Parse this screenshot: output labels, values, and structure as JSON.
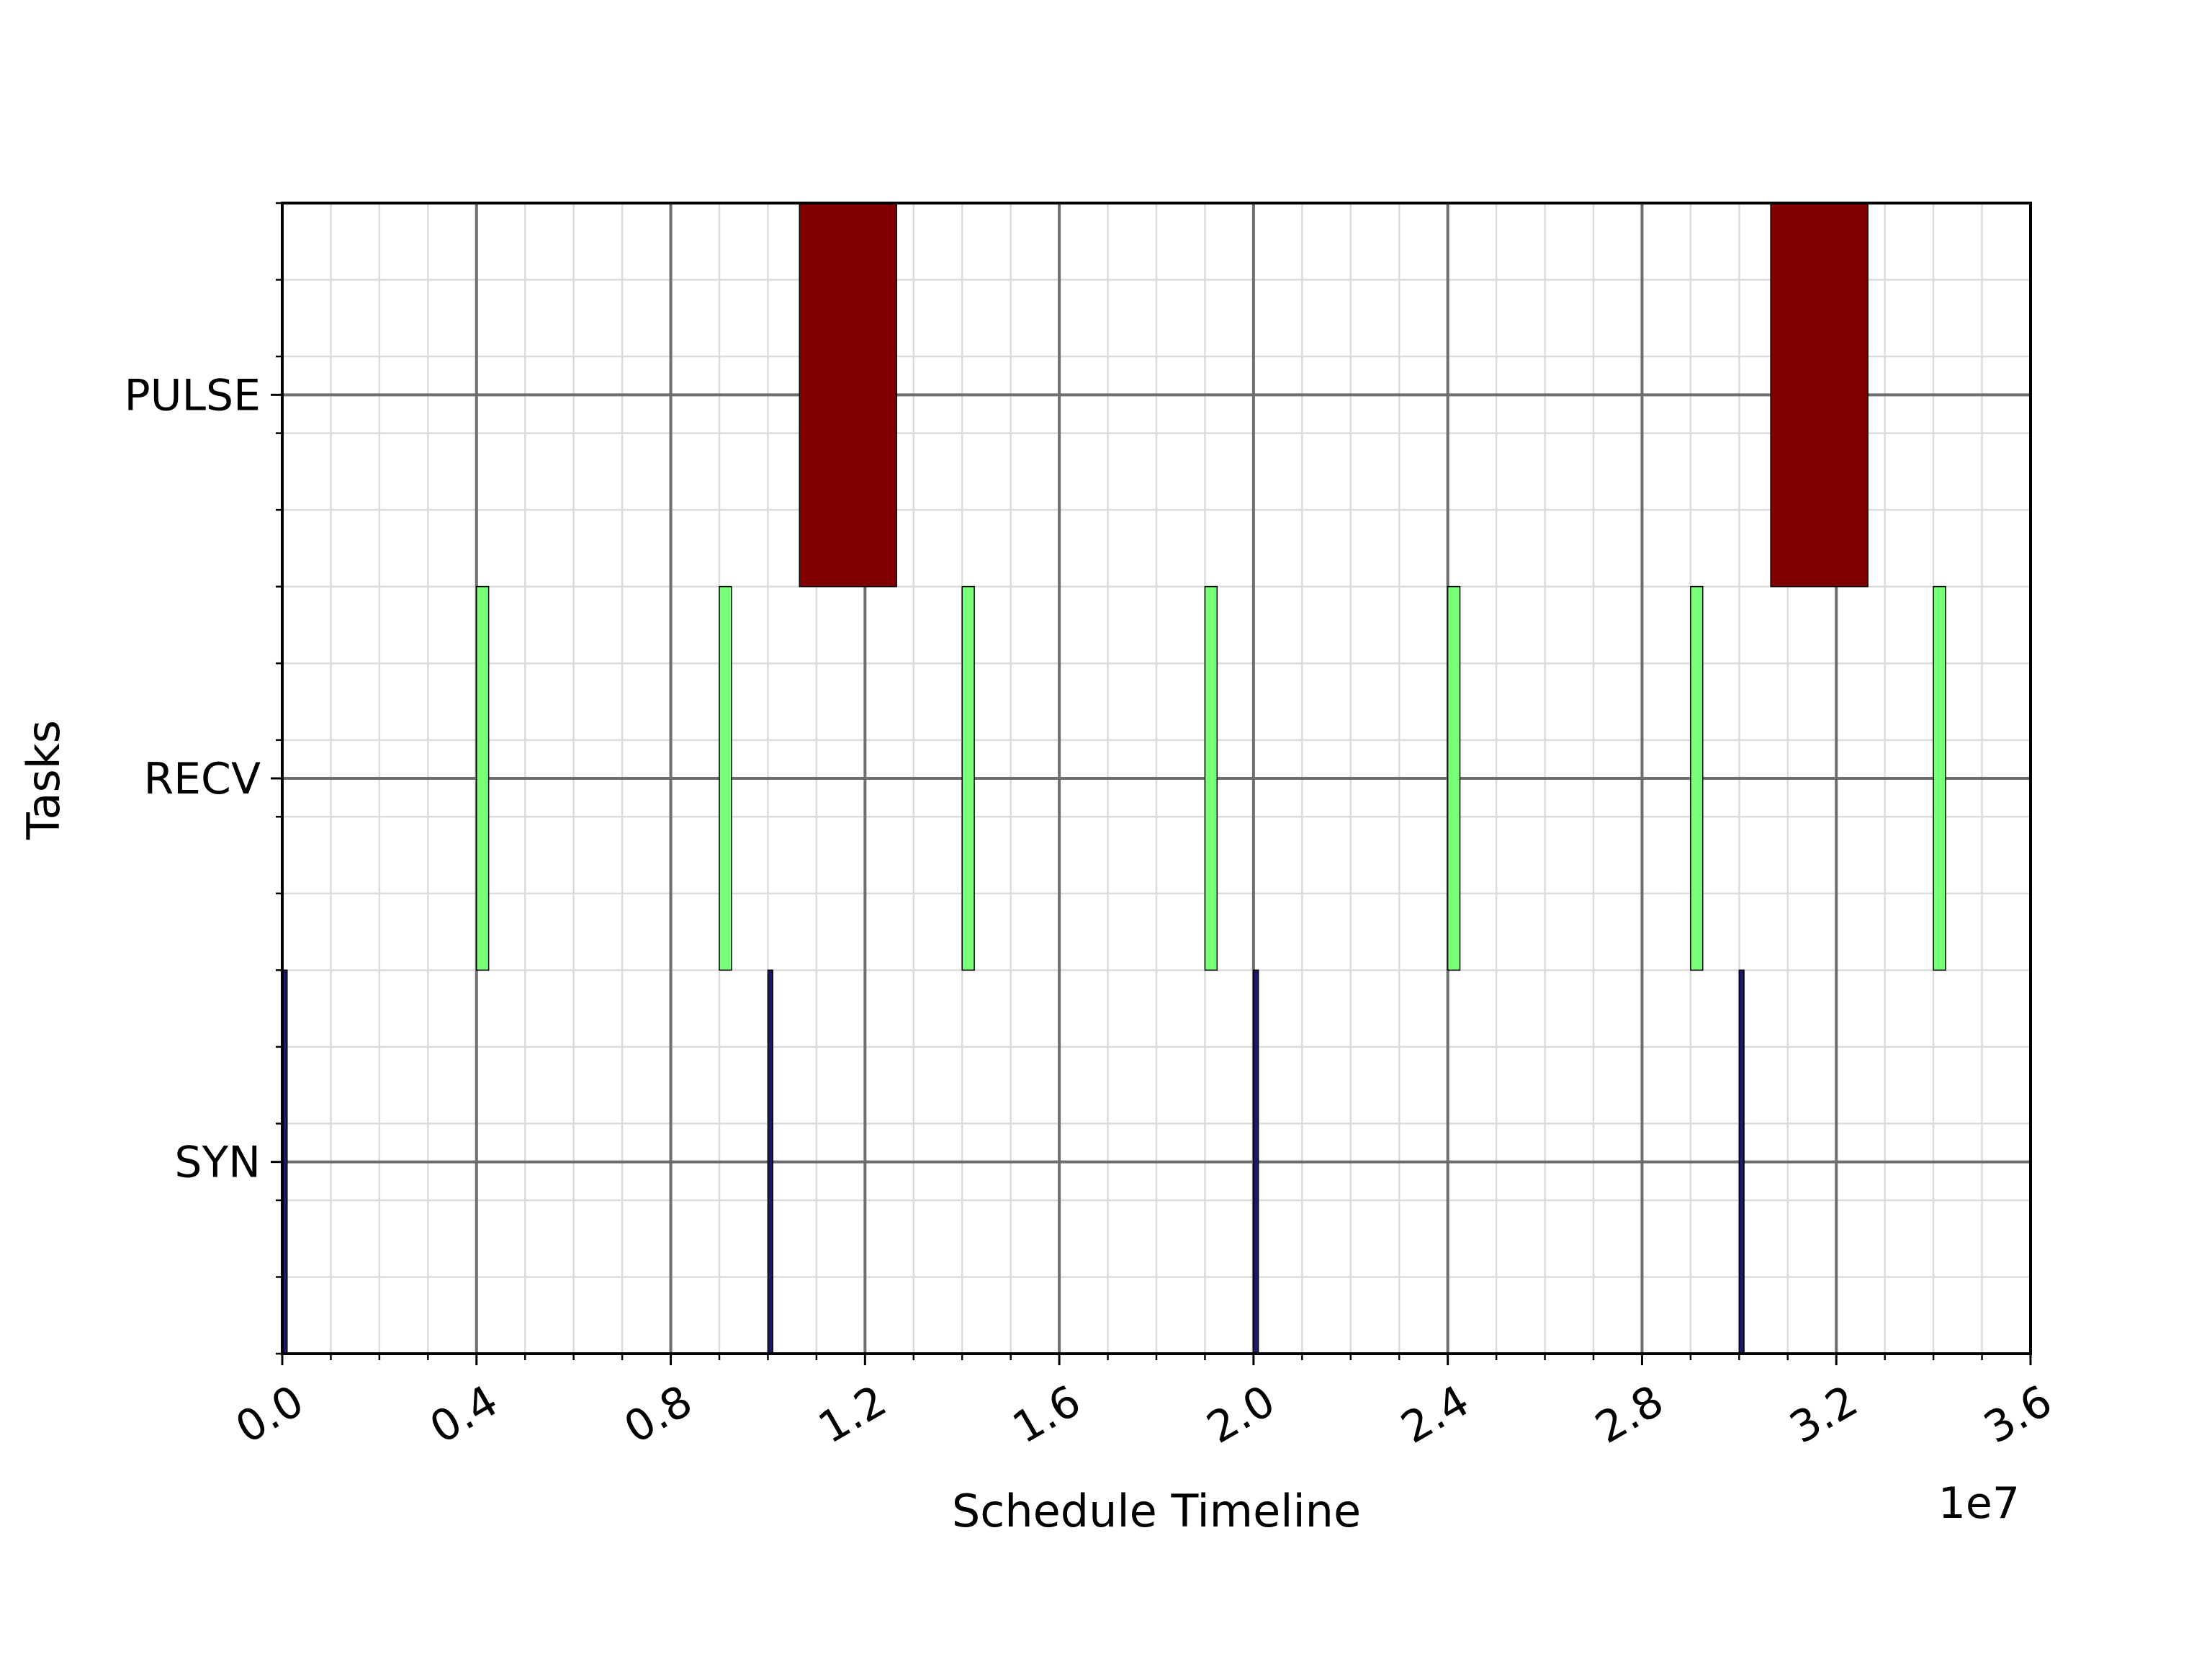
{
  "chart_data": {
    "type": "gantt",
    "title": "",
    "xlabel": "Schedule Timeline",
    "ylabel": "Tasks",
    "x_multiplier_label": "1e7",
    "xlim": [
      0,
      36000000
    ],
    "x_ticks": [
      0,
      4000000,
      8000000,
      12000000,
      16000000,
      20000000,
      24000000,
      28000000,
      32000000,
      36000000
    ],
    "x_tick_labels": [
      "0.0",
      "0.4",
      "0.8",
      "1.2",
      "1.6",
      "2.0",
      "2.4",
      "2.8",
      "3.2",
      "3.6"
    ],
    "x_minor_step": 1000000,
    "ylim": [
      -0.5,
      2.5
    ],
    "y_minor_step": 0.2,
    "categories": [
      "SYN",
      "RECV",
      "PULSE"
    ],
    "grid": true,
    "series": [
      {
        "task": "SYN",
        "color": "#1a1a66",
        "bars": [
          {
            "start": 0,
            "duration": 100000
          },
          {
            "start": 10000000,
            "duration": 100000
          },
          {
            "start": 20000000,
            "duration": 100000
          },
          {
            "start": 30000000,
            "duration": 100000
          }
        ]
      },
      {
        "task": "RECV",
        "color": "#77ff77",
        "bars": [
          {
            "start": 4000000,
            "duration": 250000
          },
          {
            "start": 9000000,
            "duration": 250000
          },
          {
            "start": 14000000,
            "duration": 250000
          },
          {
            "start": 19000000,
            "duration": 250000
          },
          {
            "start": 24000000,
            "duration": 250000
          },
          {
            "start": 29000000,
            "duration": 250000
          },
          {
            "start": 34000000,
            "duration": 250000
          }
        ]
      },
      {
        "task": "PULSE",
        "color": "#800000",
        "bars": [
          {
            "start": 10650000,
            "duration": 2000000
          },
          {
            "start": 30650000,
            "duration": 2000000
          }
        ]
      }
    ]
  }
}
